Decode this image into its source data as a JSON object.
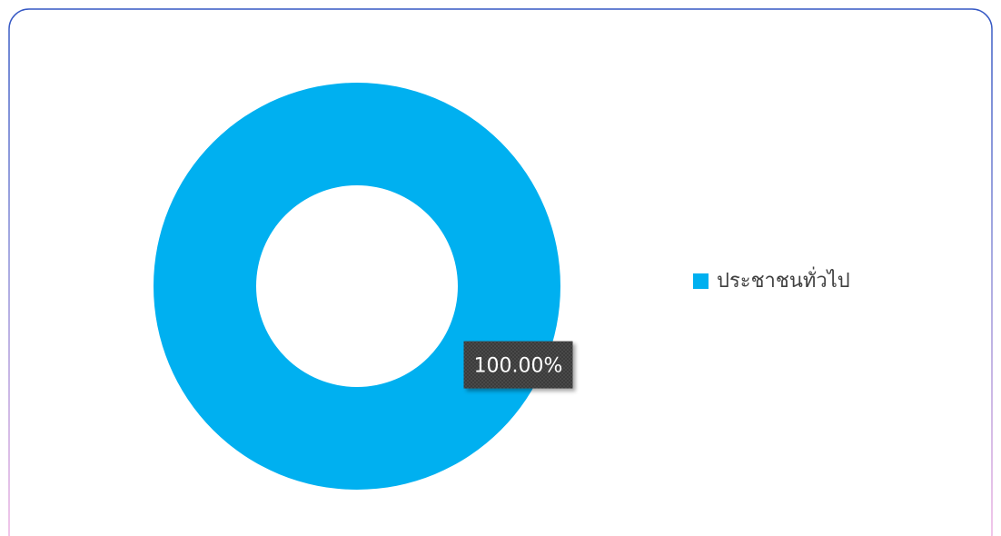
{
  "chart_data": {
    "type": "donut",
    "categories": [
      "ประชาชนทั่วไป"
    ],
    "values": [
      100
    ],
    "value_labels": [
      "100.00%"
    ],
    "colors": [
      "#00b0f0"
    ],
    "legend": "right"
  }
}
